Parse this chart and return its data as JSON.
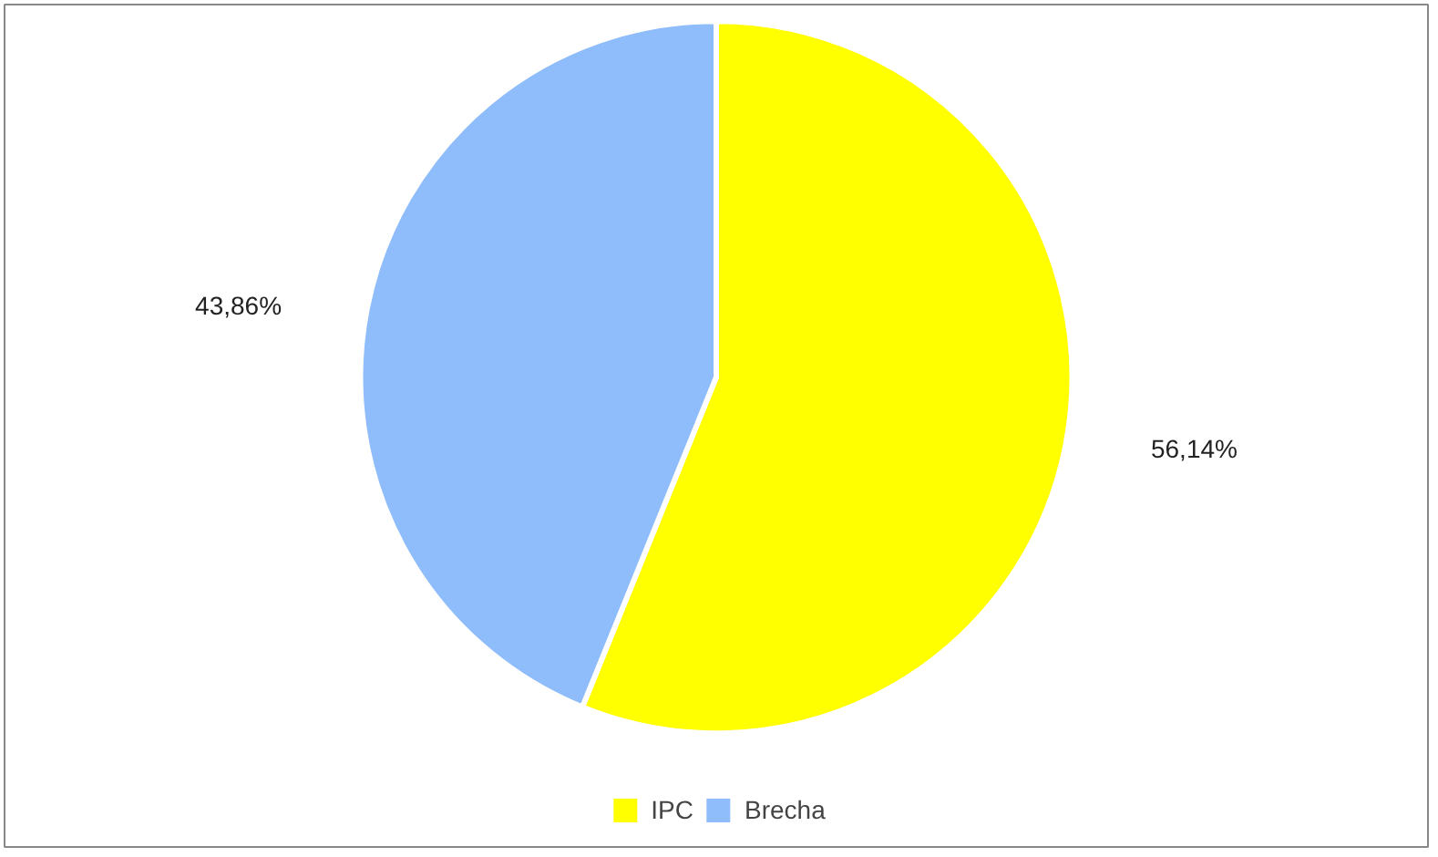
{
  "chart_data": {
    "type": "pie",
    "categories": [
      "IPC",
      "Brecha"
    ],
    "values": [
      56.14,
      43.86
    ],
    "colors": [
      "#ffff00",
      "#8fbcfa"
    ],
    "value_labels": [
      "56,14%",
      "43,86%"
    ],
    "legend": "bottom"
  }
}
